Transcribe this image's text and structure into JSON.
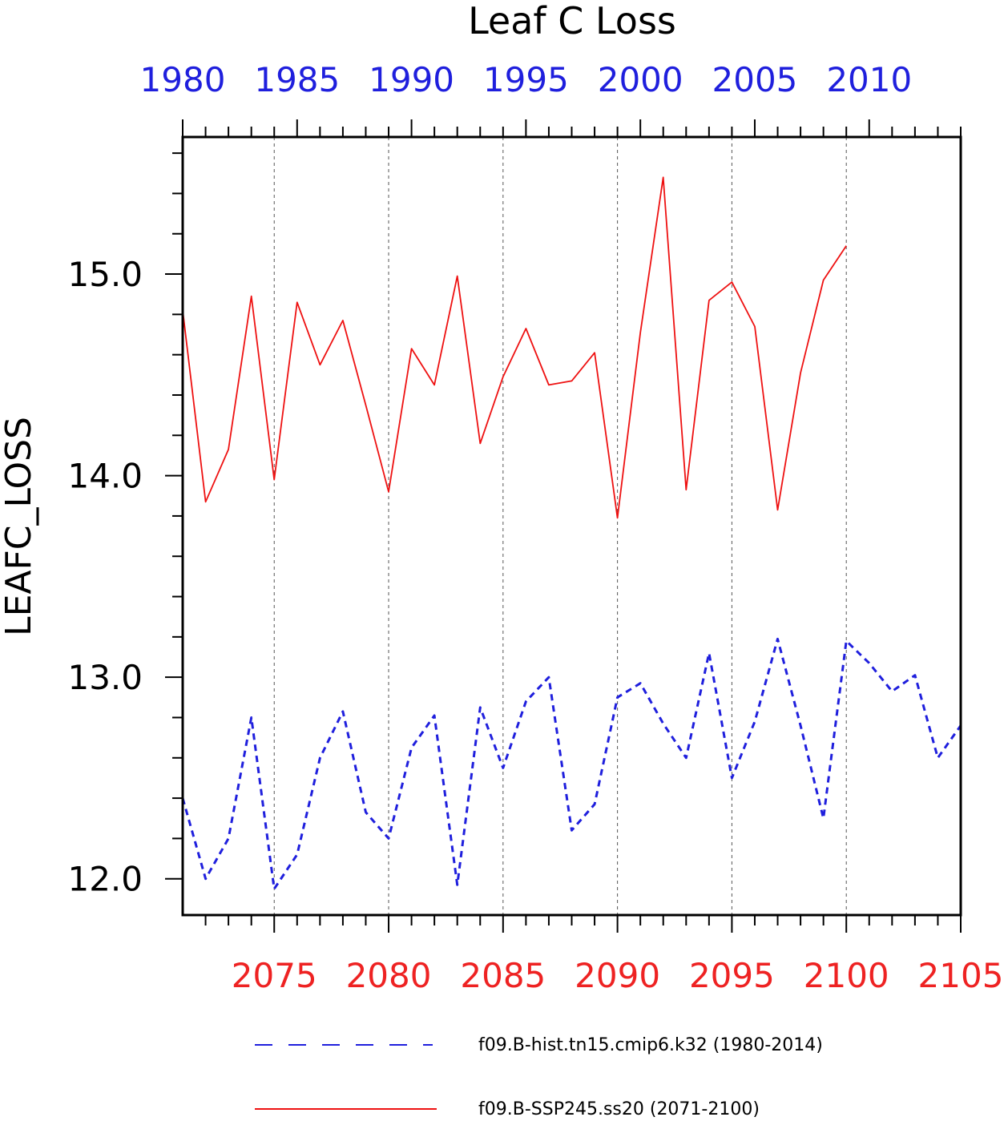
{
  "chart_data": {
    "type": "line",
    "title": "Leaf C Loss",
    "ylabel": "LEAFC_LOSS",
    "ylim": [
      11.82,
      15.68
    ],
    "y_ticks": [
      "12.0",
      "13.0",
      "14.0",
      "15.0"
    ],
    "x_top": {
      "label_color": "#1f1fdd",
      "range": [
        1980,
        2014
      ],
      "ticks": [
        "1980",
        "1985",
        "1990",
        "1995",
        "2000",
        "2005",
        "2010"
      ]
    },
    "x_bottom": {
      "label_color": "#ee2222",
      "range": [
        2071,
        2105
      ],
      "ticks": [
        "2075",
        "2080",
        "2085",
        "2090",
        "2095",
        "2100",
        "2105"
      ]
    },
    "grid": "vertical dashed lines at x-axis major ticks",
    "legend_position": "bottom",
    "series": [
      {
        "name": "f09.B-hist.tn15.cmip6.k32 (1980-2014)",
        "color": "#1f1fdd",
        "style": "dashed",
        "x": [
          1980,
          1981,
          1982,
          1983,
          1984,
          1985,
          1986,
          1987,
          1988,
          1989,
          1990,
          1991,
          1992,
          1993,
          1994,
          1995,
          1996,
          1997,
          1998,
          1999,
          2000,
          2001,
          2002,
          2003,
          2004,
          2005,
          2006,
          2007,
          2008,
          2009,
          2010,
          2011,
          2012,
          2013,
          2014
        ],
        "values": [
          12.4,
          12.0,
          12.2,
          12.8,
          11.95,
          12.12,
          12.6,
          12.83,
          12.33,
          12.2,
          12.65,
          12.81,
          11.97,
          12.85,
          12.55,
          12.88,
          13.0,
          12.24,
          12.37,
          12.9,
          12.97,
          12.77,
          12.6,
          13.12,
          12.5,
          12.78,
          13.19,
          12.76,
          12.3,
          13.18,
          13.07,
          12.93,
          13.01,
          12.6,
          12.76
        ]
      },
      {
        "name": "f09.B-SSP245.ss20 (2071-2100)",
        "color": "#ee1111",
        "style": "solid",
        "x": [
          2071,
          2072,
          2073,
          2074,
          2075,
          2076,
          2077,
          2078,
          2079,
          2080,
          2081,
          2082,
          2083,
          2084,
          2085,
          2086,
          2087,
          2088,
          2089,
          2090,
          2091,
          2092,
          2093,
          2094,
          2095,
          2096,
          2097,
          2098,
          2099,
          2100
        ],
        "values": [
          14.82,
          13.87,
          14.13,
          14.89,
          13.98,
          14.86,
          14.55,
          14.77,
          14.35,
          13.92,
          14.63,
          14.45,
          14.99,
          14.16,
          14.49,
          14.73,
          14.45,
          14.47,
          14.61,
          13.79,
          14.71,
          15.48,
          13.93,
          14.87,
          14.96,
          14.74,
          13.83,
          14.51,
          14.97,
          15.14
        ]
      }
    ]
  }
}
